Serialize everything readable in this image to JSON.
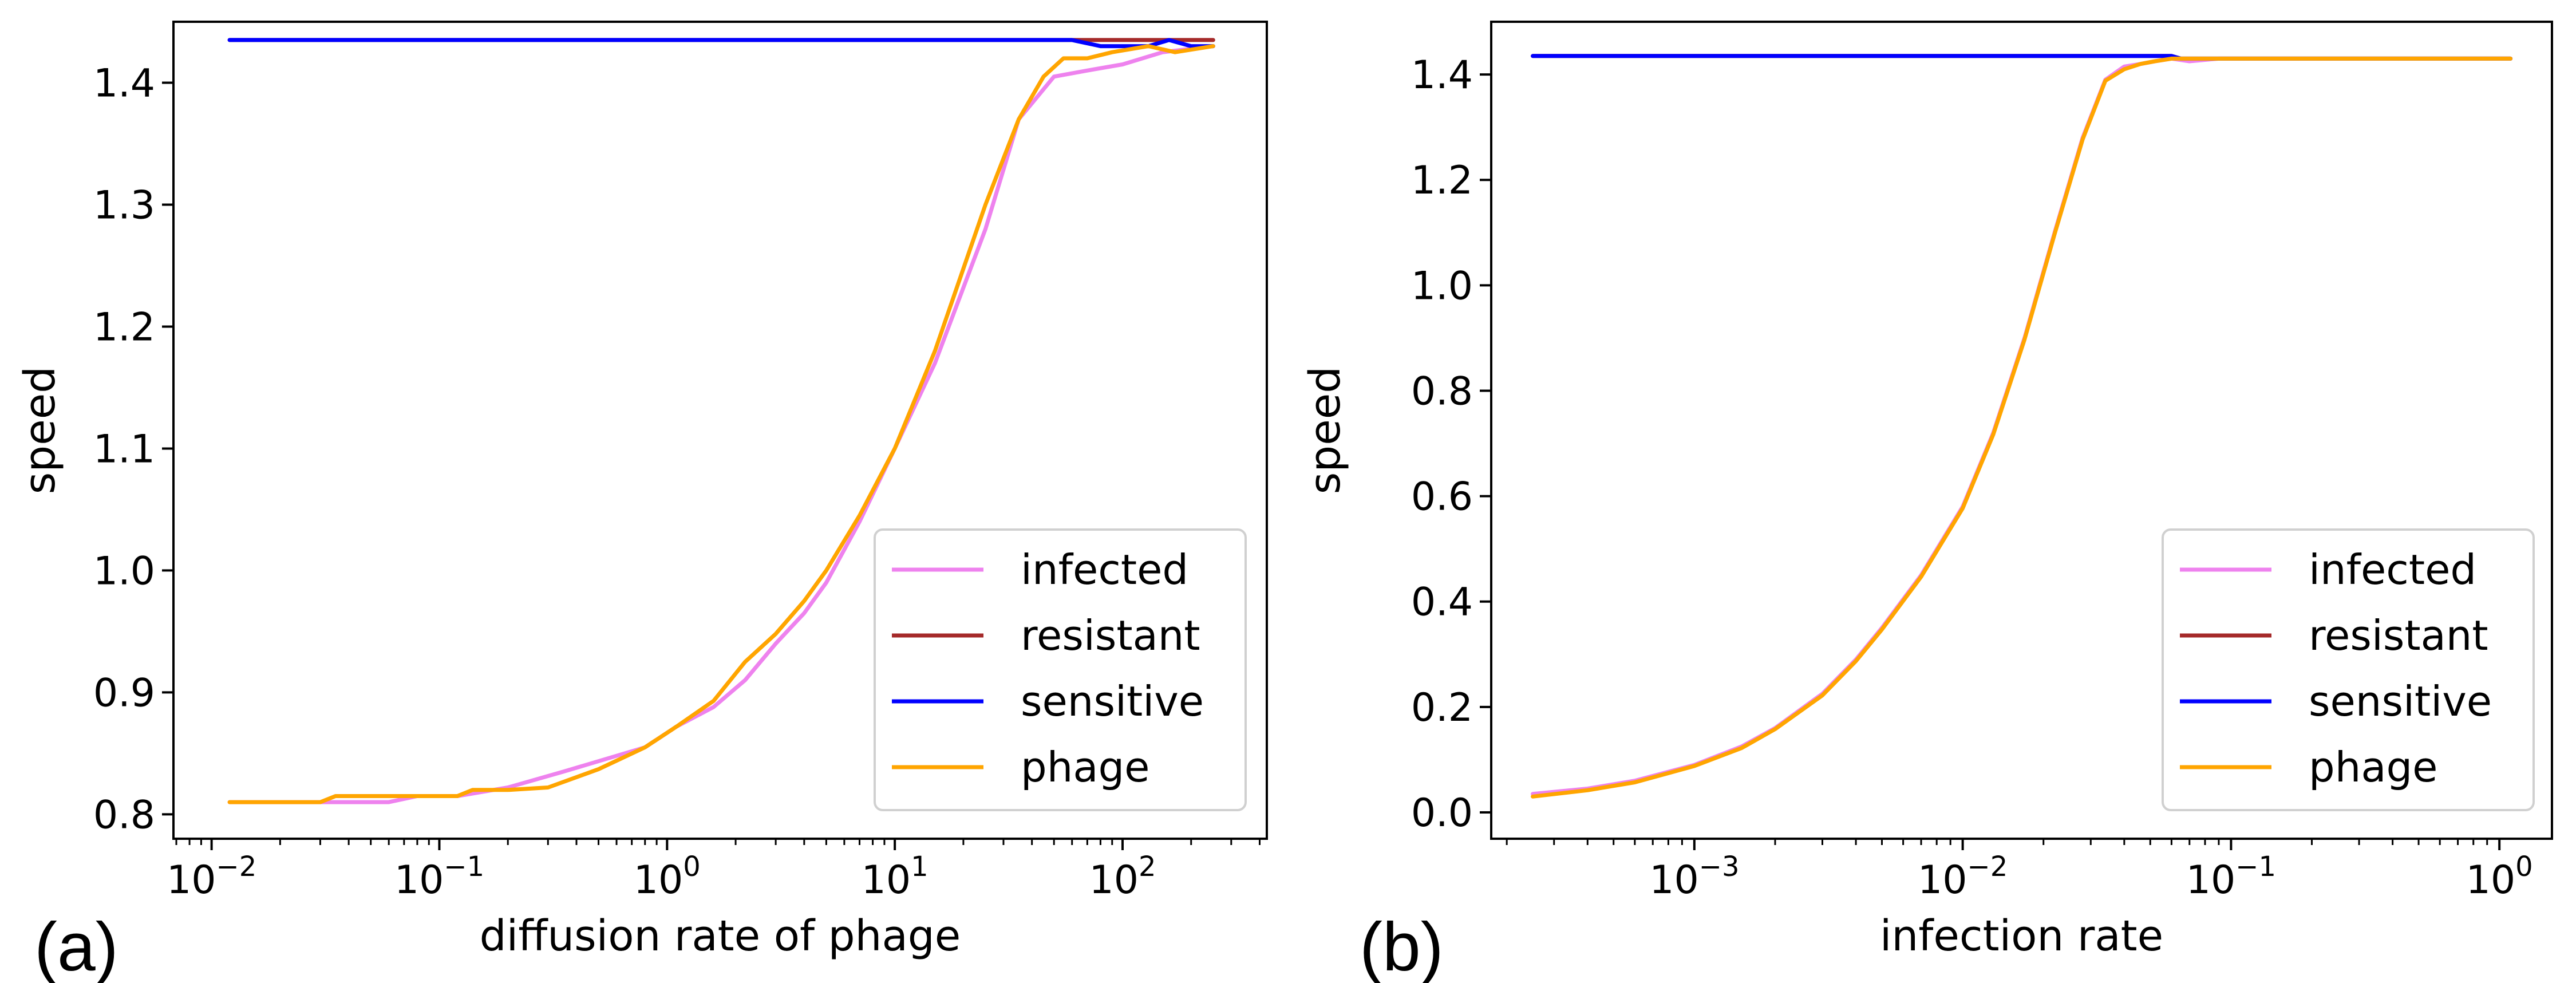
{
  "colors": {
    "infected": "#ee82ee",
    "resistant": "#a52a2a",
    "sensitive": "#0000ff",
    "phage": "#ffa500"
  },
  "chart_data": [
    {
      "type": "line",
      "panel_label": "(a)",
      "xlabel": "diffusion rate of phage",
      "ylabel": "speed",
      "xscale": "log",
      "xlim": [
        0.0068,
        430
      ],
      "ylim": [
        0.78,
        1.45
      ],
      "xticks": [
        {
          "value": 0.01,
          "base": "10",
          "exp": "−2"
        },
        {
          "value": 0.1,
          "base": "10",
          "exp": "−1"
        },
        {
          "value": 1,
          "base": "10",
          "exp": "0"
        },
        {
          "value": 10,
          "base": "10",
          "exp": "1"
        },
        {
          "value": 100,
          "base": "10",
          "exp": "2"
        }
      ],
      "yticks": [
        {
          "value": 0.8,
          "label": "0.8"
        },
        {
          "value": 0.9,
          "label": "0.9"
        },
        {
          "value": 1.0,
          "label": "1.0"
        },
        {
          "value": 1.1,
          "label": "1.1"
        },
        {
          "value": 1.2,
          "label": "1.2"
        },
        {
          "value": 1.3,
          "label": "1.3"
        },
        {
          "value": 1.4,
          "label": "1.4"
        }
      ],
      "grid": false,
      "legend": "lower-right",
      "series": [
        {
          "name": "infected",
          "color_key": "infected",
          "x": [
            0.012,
            0.02,
            0.03,
            0.04,
            0.06,
            0.08,
            0.12,
            0.2,
            0.35,
            0.6,
            0.8,
            1.1,
            1.6,
            2.2,
            3,
            4,
            5,
            7,
            10,
            15,
            25,
            35,
            50,
            70,
            100,
            150,
            250
          ],
          "y": [
            0.81,
            0.81,
            0.81,
            0.81,
            0.81,
            0.815,
            0.815,
            0.822,
            0.835,
            0.848,
            0.855,
            0.872,
            0.888,
            0.91,
            0.94,
            0.965,
            0.99,
            1.04,
            1.1,
            1.17,
            1.28,
            1.37,
            1.405,
            1.41,
            1.415,
            1.425,
            1.43
          ]
        },
        {
          "name": "resistant",
          "color_key": "resistant",
          "x": [
            0.012,
            250
          ],
          "y": [
            1.435,
            1.435
          ]
        },
        {
          "name": "sensitive",
          "color_key": "sensitive",
          "x": [
            0.012,
            60,
            80,
            100,
            130,
            160,
            200,
            250
          ],
          "y": [
            1.435,
            1.435,
            1.43,
            1.43,
            1.43,
            1.435,
            1.43,
            1.43
          ]
        },
        {
          "name": "phage",
          "color_key": "phage",
          "x": [
            0.012,
            0.02,
            0.03,
            0.035,
            0.05,
            0.08,
            0.12,
            0.14,
            0.2,
            0.3,
            0.5,
            0.8,
            1.1,
            1.6,
            2.2,
            3,
            4,
            5,
            7,
            10,
            15,
            25,
            35,
            45,
            55,
            70,
            90,
            130,
            170,
            250
          ],
          "y": [
            0.81,
            0.81,
            0.81,
            0.815,
            0.815,
            0.815,
            0.815,
            0.82,
            0.82,
            0.822,
            0.837,
            0.855,
            0.872,
            0.893,
            0.925,
            0.948,
            0.975,
            1.0,
            1.045,
            1.1,
            1.18,
            1.3,
            1.37,
            1.405,
            1.42,
            1.42,
            1.425,
            1.43,
            1.425,
            1.43
          ]
        }
      ]
    },
    {
      "type": "line",
      "panel_label": "(b)",
      "xlabel": "infection rate",
      "ylabel": "speed",
      "xscale": "log",
      "xlim": [
        0.000175,
        1.57
      ],
      "ylim": [
        -0.05,
        1.5
      ],
      "xticks": [
        {
          "value": 0.001,
          "base": "10",
          "exp": "−3"
        },
        {
          "value": 0.01,
          "base": "10",
          "exp": "−2"
        },
        {
          "value": 0.1,
          "base": "10",
          "exp": "−1"
        },
        {
          "value": 1,
          "base": "10",
          "exp": "0"
        }
      ],
      "yticks": [
        {
          "value": 0.0,
          "label": "0.0"
        },
        {
          "value": 0.2,
          "label": "0.2"
        },
        {
          "value": 0.4,
          "label": "0.4"
        },
        {
          "value": 0.6,
          "label": "0.6"
        },
        {
          "value": 0.8,
          "label": "0.8"
        },
        {
          "value": 1.0,
          "label": "1.0"
        },
        {
          "value": 1.2,
          "label": "1.2"
        },
        {
          "value": 1.4,
          "label": "1.4"
        }
      ],
      "grid": false,
      "legend": "lower-right",
      "series": [
        {
          "name": "infected",
          "color_key": "infected",
          "x": [
            0.00025,
            0.0004,
            0.0006,
            0.001,
            0.0015,
            0.002,
            0.003,
            0.004,
            0.005,
            0.007,
            0.01,
            0.013,
            0.017,
            0.022,
            0.028,
            0.034,
            0.04,
            0.046,
            0.052,
            0.06,
            0.07,
            0.09,
            0.12,
            0.2,
            0.4,
            1.1
          ],
          "y": [
            0.035,
            0.045,
            0.06,
            0.09,
            0.125,
            0.16,
            0.225,
            0.29,
            0.35,
            0.45,
            0.58,
            0.72,
            0.9,
            1.1,
            1.28,
            1.39,
            1.415,
            1.42,
            1.425,
            1.43,
            1.425,
            1.43,
            1.43,
            1.43,
            1.43,
            1.43
          ]
        },
        {
          "name": "resistant",
          "color_key": "resistant",
          "x": [
            0.00025,
            0.06,
            0.065,
            0.1,
            0.12,
            1.1
          ],
          "y": [
            1.435,
            1.435,
            1.43,
            1.43,
            1.43,
            1.43
          ]
        },
        {
          "name": "sensitive",
          "color_key": "sensitive",
          "x": [
            0.00025,
            0.06,
            0.065,
            0.1,
            0.12,
            1.1
          ],
          "y": [
            1.435,
            1.435,
            1.43,
            1.43,
            1.43,
            1.43
          ]
        },
        {
          "name": "phage",
          "color_key": "phage",
          "x": [
            0.00025,
            0.0004,
            0.0006,
            0.001,
            0.0015,
            0.002,
            0.003,
            0.004,
            0.005,
            0.007,
            0.01,
            0.013,
            0.017,
            0.022,
            0.028,
            0.034,
            0.04,
            0.046,
            0.052,
            0.06,
            0.07,
            0.09,
            0.12,
            0.2,
            0.4,
            1.1
          ],
          "y": [
            0.03,
            0.042,
            0.057,
            0.088,
            0.122,
            0.158,
            0.222,
            0.287,
            0.347,
            0.447,
            0.577,
            0.717,
            0.897,
            1.097,
            1.277,
            1.388,
            1.41,
            1.42,
            1.425,
            1.43,
            1.43,
            1.43,
            1.43,
            1.43,
            1.43,
            1.43
          ]
        }
      ]
    }
  ]
}
